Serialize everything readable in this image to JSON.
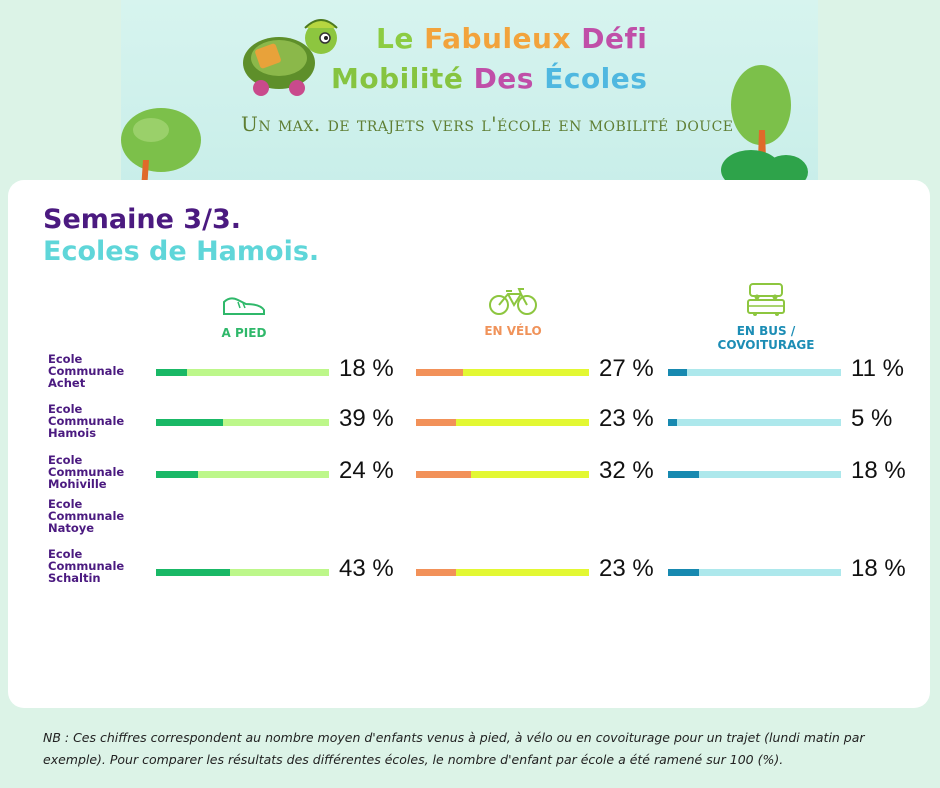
{
  "banner": {
    "title_line1_words": [
      {
        "text": "Le",
        "color": "#8ccc42"
      },
      {
        "text": "Fabuleux",
        "color": "#f2a33c"
      },
      {
        "text": "Défi",
        "color": "#c04fa8"
      }
    ],
    "title_line2_words": [
      {
        "text": "Mobilité",
        "color": "#86c440"
      },
      {
        "text": "Des",
        "color": "#c04fa8"
      },
      {
        "text": "Écoles",
        "color": "#4fb8e0"
      }
    ],
    "subtitle": "Un max. de trajets vers l'école en mobilité douce"
  },
  "heading": {
    "week": "Semaine 3/3.",
    "region": "Ecoles de Hamois."
  },
  "modes": [
    {
      "label": "A PIED",
      "icon": "shoe-icon",
      "color": "#2fb86a"
    },
    {
      "label": "EN VÉLO",
      "icon": "bicycle-icon",
      "color": "#f0935a"
    },
    {
      "label": "EN BUS / COVOITURAGE",
      "icon": "bus-car-icon",
      "color": "#1c8db5"
    }
  ],
  "chart_data": {
    "type": "bar",
    "title": "Semaine 3/3.",
    "subtitle": "Ecoles de Hamois.",
    "unit": "%",
    "xlim": [
      0,
      100
    ],
    "categories": [
      "Ecole Communale Achet",
      "Ecole Communale Hamois",
      "Ecole Communale Mohiville",
      "Ecole Communale Natoye",
      "Ecole Communale Schaltin"
    ],
    "series": [
      {
        "name": "A PIED",
        "values": [
          18,
          39,
          24,
          null,
          43
        ],
        "labels": [
          "18 %",
          "39 %",
          "24 %",
          "",
          "43 %"
        ],
        "fill_color": "#19b866",
        "track_color": "#bdf78a"
      },
      {
        "name": "EN VÉLO",
        "values": [
          27,
          23,
          32,
          null,
          23
        ],
        "labels": [
          "27 %",
          "23 %",
          "32 %",
          "",
          "23 %"
        ],
        "fill_color": "#f29159",
        "track_color": "#e3f833"
      },
      {
        "name": "EN BUS / COVOITURAGE",
        "values": [
          11,
          5,
          18,
          null,
          18
        ],
        "labels": [
          "11 %",
          "5 %",
          "18 %",
          "",
          "18 %"
        ],
        "fill_color": "#1789b0",
        "track_color": "#ade8ec"
      }
    ]
  },
  "school_names": [
    [
      "Ecole",
      "Communale",
      "Achet"
    ],
    [
      "Ecole",
      "Communale",
      "Hamois"
    ],
    [
      "Ecole",
      "Communale",
      "Mohiville"
    ],
    [
      "Ecole",
      "Communale",
      "Natoye"
    ],
    [
      "Ecole",
      "Communale",
      "Schaltin"
    ]
  ],
  "note": "NB : Ces chiffres correspondent au nombre moyen d'enfants venus à pied, à vélo ou en covoiturage pour un trajet (lundi matin par exemple). Pour comparer les résultats des différentes écoles, le nombre d'enfant par école a été ramené sur 100 (%)."
}
